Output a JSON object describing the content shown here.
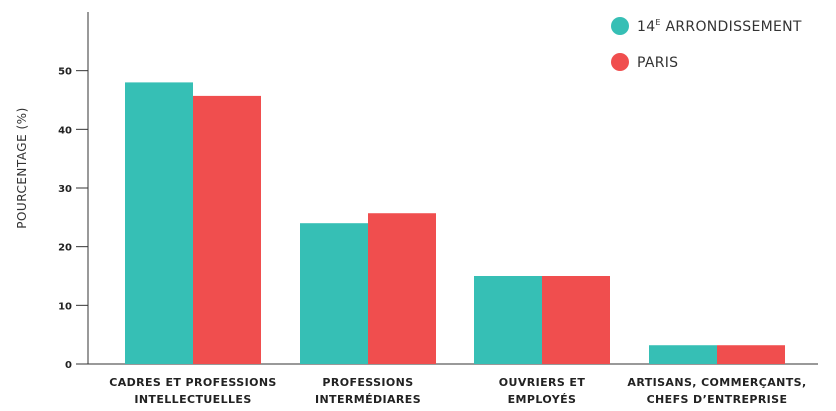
{
  "chart_data": {
    "type": "bar",
    "title": "",
    "xlabel": "",
    "ylabel": "POURCENTAGE (%)",
    "ylim": [
      0,
      60
    ],
    "yticks": [
      0,
      10,
      20,
      30,
      40,
      50
    ],
    "grid": false,
    "legend_position": "top-right",
    "categories": [
      [
        "CADRES ET PROFESSIONS",
        "INTELLECTUELLES"
      ],
      [
        "PROFESSIONS",
        "INTERMÉDIARES"
      ],
      [
        "OUVRIERS ET",
        "EMPLOYÉS"
      ],
      [
        "ARTISANS, COMMERÇANTS,",
        "CHEFS D’ENTREPRISE"
      ]
    ],
    "series": [
      {
        "name": "14E ARRONDISSEMENT",
        "legend_main": "14",
        "legend_sup": "E",
        "legend_rest": " ARRONDISSEMENT",
        "color": "#36bfb5",
        "values": [
          48,
          24,
          15,
          3.2
        ]
      },
      {
        "name": "PARIS",
        "legend_main": "PARIS",
        "legend_sup": "",
        "legend_rest": "",
        "color": "#f04e4e",
        "values": [
          45.7,
          25.7,
          15,
          3.2
        ]
      }
    ]
  }
}
